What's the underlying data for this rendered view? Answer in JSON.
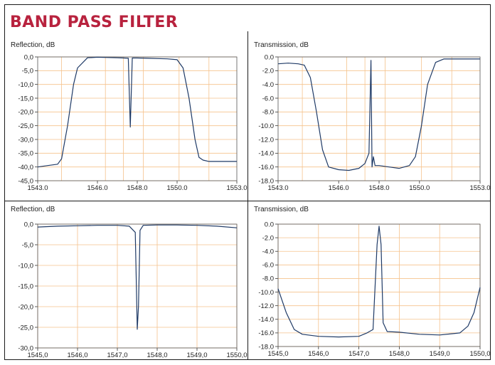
{
  "title": "BAND PASS FILTER",
  "colors": {
    "title": "#b8223e",
    "grid": "#f5c28c",
    "line": "#1f3a66"
  },
  "chart_data": [
    {
      "type": "line",
      "ylabel": "Reflection, dB",
      "xlim": [
        1543.0,
        1553.0
      ],
      "ylim": [
        -45.0,
        0.0
      ],
      "yticks": [
        0,
        -5,
        -10,
        -15,
        -20,
        -25,
        -30,
        -35,
        -40,
        -45
      ],
      "ytick_labels": [
        "0,0",
        "-5,0",
        "-10,0",
        "-15,0",
        "-20,0",
        "-25,0",
        "-30,0",
        "-35,0",
        "-40,0",
        "-45,0"
      ],
      "xtick_labels": [
        {
          "x": 1543.0,
          "label": "1543.0"
        },
        {
          "x": 1546.0,
          "label": "1546.0"
        },
        {
          "x": 1548.0,
          "label": "1548.0"
        },
        {
          "x": 1550.0,
          "label": "1550.0"
        },
        {
          "x": 1553.0,
          "label": "1553.0"
        }
      ],
      "xgrid": [
        1544.2,
        1546.4,
        1547.3,
        1548.3,
        1550.1,
        1551.6
      ],
      "grid": true,
      "series": [
        {
          "x": [
            1543.0,
            1543.5,
            1544.0,
            1544.2,
            1544.5,
            1544.8,
            1545.0,
            1545.5,
            1546.0,
            1546.5,
            1547.0,
            1547.3,
            1547.55,
            1547.65,
            1547.75,
            1548.0,
            1548.5,
            1549.0,
            1549.5,
            1550.0,
            1550.3,
            1550.6,
            1550.9,
            1551.1,
            1551.3,
            1551.6,
            1552.0,
            1552.5,
            1553.0
          ],
          "y": [
            -40.0,
            -39.5,
            -39.0,
            -37.0,
            -25.0,
            -10.0,
            -4.0,
            -0.3,
            -0.1,
            -0.2,
            -0.3,
            -0.4,
            -0.5,
            -25.5,
            -0.4,
            -0.4,
            -0.5,
            -0.6,
            -0.7,
            -1.0,
            -4.0,
            -15.0,
            -30.0,
            -36.5,
            -37.5,
            -38.0,
            -38.0,
            -38.0,
            -38.0
          ]
        }
      ]
    },
    {
      "type": "line",
      "ylabel": "Transmission, dB",
      "xlim": [
        1543.0,
        1553.0
      ],
      "ylim": [
        -18.0,
        0.0
      ],
      "yticks": [
        0,
        -2,
        -4,
        -6,
        -8,
        -10,
        -12,
        -14,
        -16,
        -18
      ],
      "ytick_labels": [
        "0.0",
        "-2.0",
        "-4.0",
        "-6.0",
        "-8.0",
        "-10.0",
        "-12.0",
        "-14.0",
        "-16.0",
        "-18.0"
      ],
      "xtick_labels": [
        {
          "x": 1543.0,
          "label": "1543.0"
        },
        {
          "x": 1546.0,
          "label": "1546.0"
        },
        {
          "x": 1548.0,
          "label": "1548.0"
        },
        {
          "x": 1550.0,
          "label": "1550.0"
        },
        {
          "x": 1553.0,
          "label": "1553.0"
        }
      ],
      "xgrid": [
        1544.2,
        1546.4,
        1547.3,
        1548.3,
        1550.1,
        1551.6
      ],
      "grid": true,
      "series": [
        {
          "x": [
            1543.0,
            1543.5,
            1544.0,
            1544.3,
            1544.6,
            1544.9,
            1545.2,
            1545.5,
            1546.0,
            1546.5,
            1547.0,
            1547.3,
            1547.5,
            1547.6,
            1547.65,
            1547.72,
            1547.8,
            1548.0,
            1548.5,
            1549.0,
            1549.5,
            1549.8,
            1550.1,
            1550.4,
            1550.8,
            1551.2,
            1552.0,
            1553.0
          ],
          "y": [
            -1.0,
            -0.9,
            -1.0,
            -1.2,
            -3.0,
            -8.0,
            -13.5,
            -16.0,
            -16.4,
            -16.5,
            -16.2,
            -15.5,
            -14.0,
            -0.5,
            -16.0,
            -14.5,
            -15.8,
            -15.8,
            -16.0,
            -16.2,
            -15.8,
            -14.5,
            -10.0,
            -4.0,
            -0.8,
            -0.3,
            -0.3,
            -0.3
          ]
        }
      ]
    },
    {
      "type": "line",
      "ylabel": "Reflection, dB",
      "xlim": [
        1545.0,
        1550.0
      ],
      "ylim": [
        -30.0,
        0.0
      ],
      "yticks": [
        0,
        -5,
        -10,
        -15,
        -20,
        -25,
        -30
      ],
      "ytick_labels": [
        "0,0",
        "-5,0",
        "-10,0",
        "-15,0",
        "-20,0",
        "-25,0",
        "-30,0"
      ],
      "xtick_labels": [
        {
          "x": 1545.0,
          "label": "1545,0"
        },
        {
          "x": 1546.0,
          "label": "1546,0"
        },
        {
          "x": 1547.0,
          "label": "1547,0"
        },
        {
          "x": 1548.0,
          "label": "1548,0"
        },
        {
          "x": 1549.0,
          "label": "1549,0"
        },
        {
          "x": 1550.0,
          "label": "1550,0"
        }
      ],
      "xgrid": [
        1545.0,
        1546.0,
        1547.0,
        1548.0,
        1549.0,
        1550.0
      ],
      "grid": true,
      "series": [
        {
          "x": [
            1545.0,
            1545.5,
            1546.0,
            1546.5,
            1547.0,
            1547.3,
            1547.45,
            1547.5,
            1547.53,
            1547.57,
            1547.65,
            1548.0,
            1548.5,
            1549.0,
            1549.5,
            1550.0
          ],
          "y": [
            -0.7,
            -0.5,
            -0.4,
            -0.3,
            -0.3,
            -0.5,
            -2.0,
            -25.5,
            -20.0,
            -1.5,
            -0.3,
            -0.2,
            -0.2,
            -0.3,
            -0.5,
            -0.9
          ]
        }
      ]
    },
    {
      "type": "line",
      "ylabel": "Transmission, dB",
      "xlim": [
        1545.0,
        1550.0
      ],
      "ylim": [
        -18.0,
        0.0
      ],
      "yticks": [
        0,
        -2,
        -4,
        -6,
        -8,
        -10,
        -12,
        -14,
        -16,
        -18
      ],
      "ytick_labels": [
        "0.0",
        "-2.0",
        "-4.0",
        "-6.0",
        "-8.0",
        "-10.0",
        "-12.0",
        "-14.0",
        "-16.0",
        "-18.0"
      ],
      "xtick_labels": [
        {
          "x": 1545.0,
          "label": "1545,0"
        },
        {
          "x": 1546.0,
          "label": "1546,0"
        },
        {
          "x": 1547.0,
          "label": "1547,0"
        },
        {
          "x": 1548.0,
          "label": "1548,0"
        },
        {
          "x": 1549.0,
          "label": "1549,0"
        },
        {
          "x": 1550.0,
          "label": "1550,0"
        }
      ],
      "xgrid": [
        1545.0,
        1546.0,
        1547.0,
        1548.0,
        1549.0,
        1550.0
      ],
      "grid": true,
      "series": [
        {
          "x": [
            1545.0,
            1545.2,
            1545.4,
            1545.6,
            1546.0,
            1546.5,
            1547.0,
            1547.2,
            1547.35,
            1547.45,
            1547.5,
            1547.55,
            1547.6,
            1547.7,
            1548.0,
            1548.5,
            1549.0,
            1549.5,
            1549.7,
            1549.85,
            1550.0
          ],
          "y": [
            -9.5,
            -13.0,
            -15.5,
            -16.2,
            -16.5,
            -16.6,
            -16.5,
            -16.0,
            -15.5,
            -3.0,
            -0.3,
            -3.0,
            -14.5,
            -15.8,
            -15.9,
            -16.2,
            -16.3,
            -16.0,
            -15.0,
            -13.0,
            -9.3
          ]
        }
      ]
    }
  ]
}
